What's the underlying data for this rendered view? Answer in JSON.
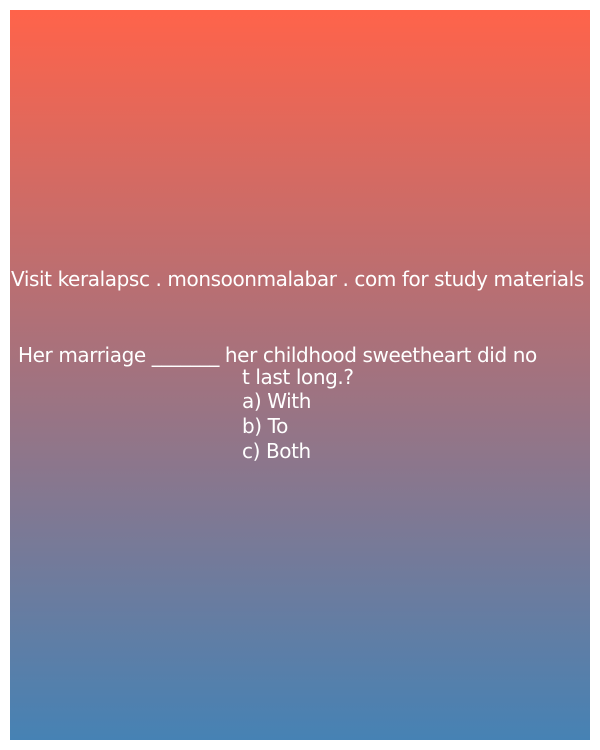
{
  "background": {
    "gradient_top": "#FF634A",
    "gradient_bottom": "#4682B4"
  },
  "banner": {
    "text": "Visit keralapsc . monsoonmalabar . com for study materials"
  },
  "question": {
    "line1": "Her marriage _______ her childhood sweetheart did no",
    "line2": "t last long.?"
  },
  "options": [
    {
      "label": "a) With"
    },
    {
      "label": "b) To"
    },
    {
      "label": "c) Both"
    }
  ]
}
